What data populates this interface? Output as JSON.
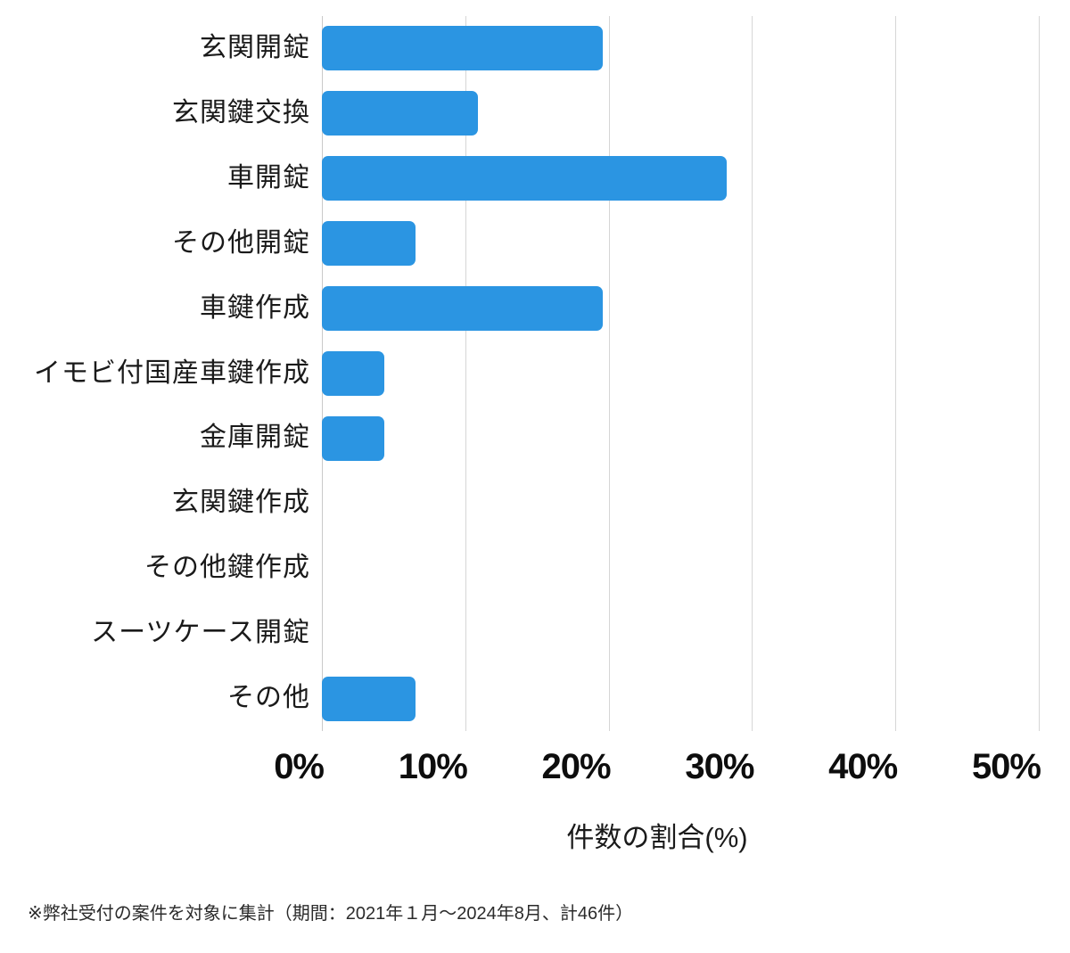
{
  "chart_data": {
    "type": "bar",
    "orientation": "horizontal",
    "title": "",
    "categories": [
      "玄関開錠",
      "玄関鍵交換",
      "車開錠",
      "その他開錠",
      "車鍵作成",
      "イモビ付国産車鍵作成",
      "金庫開錠",
      "玄関鍵作成",
      "その他鍵作成",
      "スーツケース開錠",
      "その他"
    ],
    "values": [
      19.57,
      10.87,
      28.26,
      6.52,
      19.57,
      4.35,
      4.35,
      0,
      0,
      0,
      6.52
    ],
    "value_unit": "%",
    "xlabel": "件数の割合(%)",
    "ylabel": "",
    "xlim": [
      0,
      50
    ],
    "x_tick_values": [
      0,
      10,
      20,
      30,
      40,
      50
    ],
    "x_tick_labels": [
      "0%",
      "10%",
      "20%",
      "30%",
      "40%",
      "50%"
    ],
    "grid": "vertical-gridlines-on",
    "legend": "none"
  },
  "footnote": "※弊社受付の案件を対象に集計（期間：2021年１月～2024年8月、計46件）",
  "colors": {
    "bar": "#2B95E2",
    "gridline": "#D6D6D6",
    "axis_line": "#C9C9C9",
    "text": "#1A1A1A",
    "background": "#FFFFFF"
  }
}
